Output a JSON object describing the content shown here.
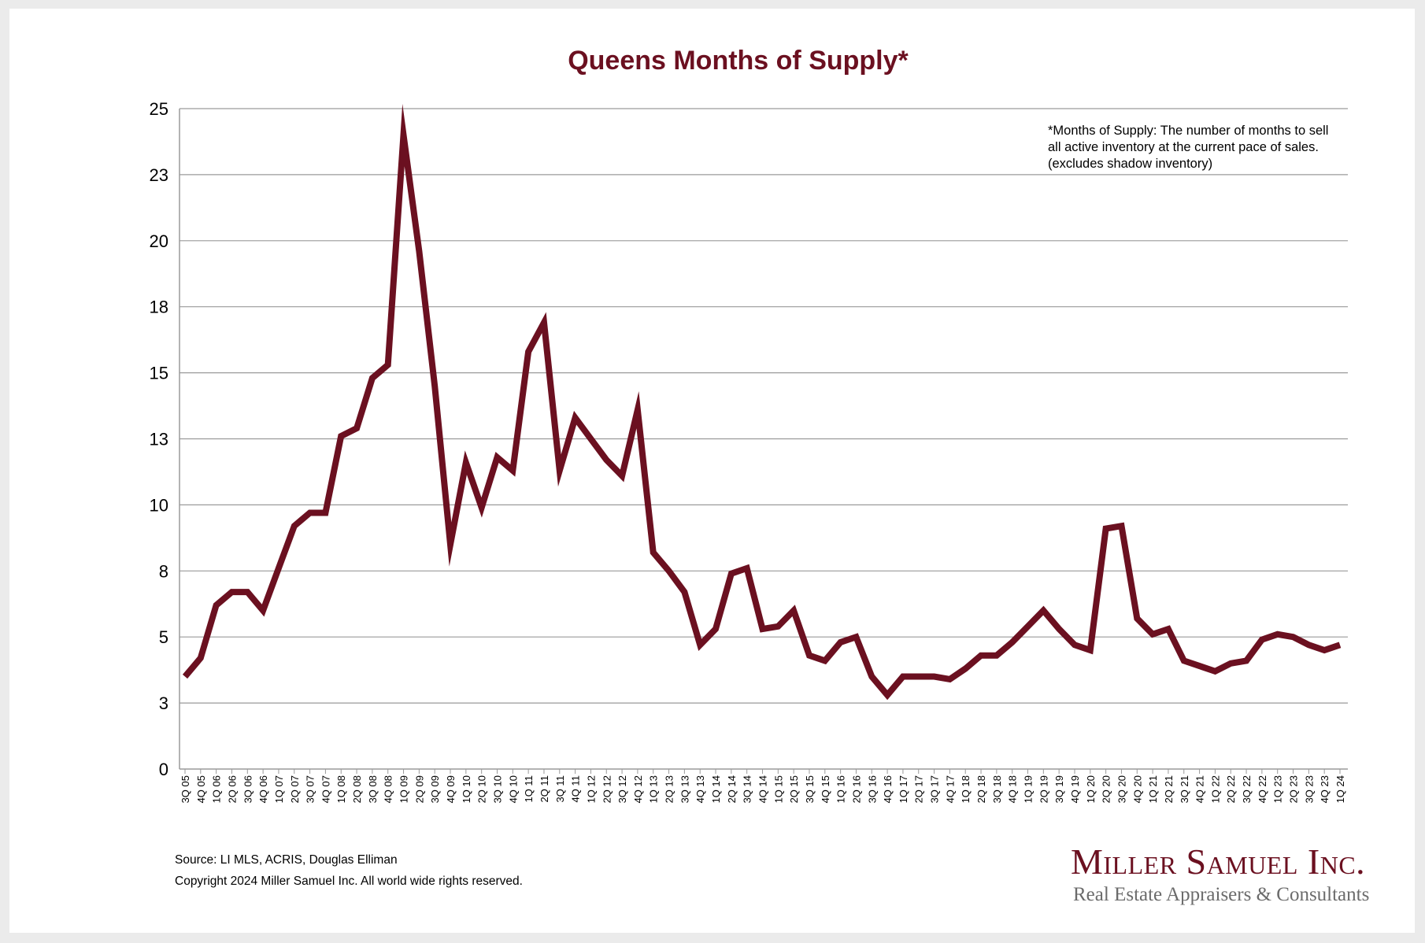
{
  "page": {
    "title": "Queens Months of Supply*",
    "footnote": [
      "*Months of Supply: The number of months to sell",
      "all active inventory at the current pace of sales.",
      "(excludes shadow inventory)"
    ],
    "source": "Source: LI MLS, ACRIS, Douglas Elliman",
    "copyright": "Copyright 2024 Miller Samuel Inc.  All world wide rights reserved.",
    "brand_name": "Miller Samuel Inc.",
    "brand_tagline": "Real Estate Appraisers & Consultants"
  },
  "colors": {
    "line": "#6b1020",
    "title": "#6b1020",
    "grid": "#9a9a9a",
    "axis": "#9a9a9a"
  },
  "chart_data": {
    "type": "line",
    "title": "Queens Months of Supply*",
    "xlabel": "",
    "ylabel": "",
    "ylim": [
      0,
      25
    ],
    "y_ticks": [
      0,
      2.5,
      5,
      7.5,
      10,
      12.5,
      15,
      17.5,
      20,
      22.5,
      25
    ],
    "y_tick_labels": [
      "0",
      "3",
      "5",
      "8",
      "10",
      "13",
      "15",
      "18",
      "20",
      "23",
      "25"
    ],
    "grid": true,
    "categories": [
      "3Q 05",
      "4Q 05",
      "1Q 06",
      "2Q 06",
      "3Q 06",
      "4Q 06",
      "1Q 07",
      "2Q 07",
      "3Q 07",
      "4Q 07",
      "1Q 08",
      "2Q 08",
      "3Q 08",
      "4Q 08",
      "1Q 09",
      "2Q 09",
      "3Q 09",
      "4Q 09",
      "1Q 10",
      "2Q 10",
      "3Q 10",
      "4Q 10",
      "1Q 11",
      "2Q 11",
      "3Q 11",
      "4Q 11",
      "1Q 12",
      "2Q 12",
      "3Q 12",
      "4Q 12",
      "1Q 13",
      "2Q 13",
      "3Q 13",
      "4Q 13",
      "1Q 14",
      "2Q 14",
      "3Q 14",
      "4Q 14",
      "1Q 15",
      "2Q 15",
      "3Q 15",
      "4Q 15",
      "1Q 16",
      "2Q 16",
      "3Q 16",
      "4Q 16",
      "1Q 17",
      "2Q 17",
      "3Q 17",
      "4Q 17",
      "1Q 18",
      "2Q 18",
      "3Q 18",
      "4Q 18",
      "1Q 19",
      "2Q 19",
      "3Q 19",
      "4Q 19",
      "1Q 20",
      "2Q 20",
      "3Q 20",
      "4Q 20",
      "1Q 21",
      "2Q 21",
      "3Q 21",
      "4Q 21",
      "1Q 22",
      "2Q 22",
      "3Q 22",
      "4Q 22",
      "1Q 23",
      "2Q 23",
      "3Q 23",
      "4Q 23",
      "1Q 24"
    ],
    "series": [
      {
        "name": "Queens Months of Supply",
        "values": [
          3.5,
          4.2,
          6.2,
          6.7,
          6.7,
          6.0,
          7.6,
          9.2,
          9.7,
          9.7,
          12.6,
          12.9,
          14.8,
          15.3,
          24.0,
          19.6,
          14.5,
          8.5,
          11.6,
          9.9,
          11.8,
          11.3,
          15.8,
          16.9,
          11.3,
          13.3,
          12.5,
          11.7,
          11.1,
          13.6,
          8.2,
          7.5,
          6.7,
          4.7,
          5.3,
          7.4,
          7.6,
          5.3,
          5.4,
          6.0,
          4.3,
          4.1,
          4.8,
          5.0,
          3.5,
          2.8,
          3.5,
          3.5,
          3.5,
          3.4,
          3.8,
          4.3,
          4.3,
          4.8,
          5.4,
          6.0,
          5.3,
          4.7,
          4.5,
          9.1,
          9.2,
          5.7,
          5.1,
          5.3,
          4.1,
          3.9,
          3.7,
          4.0,
          4.1,
          4.9,
          5.1,
          5.0,
          4.7,
          4.5,
          4.7
        ]
      }
    ]
  }
}
